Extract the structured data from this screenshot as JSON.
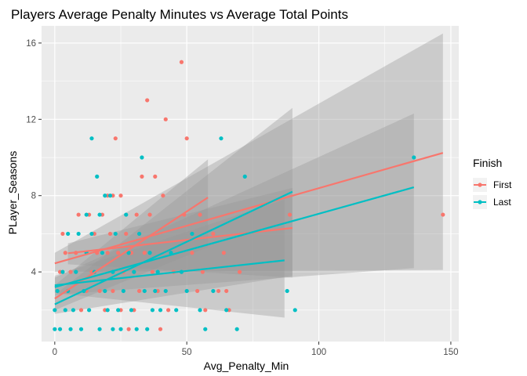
{
  "chart_data": {
    "type": "scatter",
    "title": "Players Average Penalty Minutes vs Average Total Points",
    "xlabel": "Avg_Penalty_Min",
    "ylabel": "PLayer_Seasons",
    "xlim": [
      -5,
      153
    ],
    "ylim": [
      0.35,
      16.9
    ],
    "xticks": [
      0,
      50,
      100,
      150
    ],
    "yticks": [
      4,
      8,
      12,
      16
    ],
    "grid": true,
    "legend": {
      "title": "Finish",
      "position": "right"
    },
    "series": [
      {
        "name": "First",
        "color": "#F8766D",
        "points": [
          [
            2,
            4
          ],
          [
            3,
            6
          ],
          [
            4,
            5
          ],
          [
            5,
            3
          ],
          [
            6,
            4
          ],
          [
            8,
            5
          ],
          [
            9,
            7
          ],
          [
            10,
            2
          ],
          [
            12,
            3
          ],
          [
            13,
            7
          ],
          [
            14,
            4
          ],
          [
            15,
            6
          ],
          [
            16,
            5
          ],
          [
            17,
            3
          ],
          [
            18,
            7
          ],
          [
            19,
            2
          ],
          [
            20,
            5
          ],
          [
            20,
            8
          ],
          [
            21,
            6
          ],
          [
            22,
            3
          ],
          [
            22,
            8
          ],
          [
            23,
            11
          ],
          [
            24,
            5
          ],
          [
            25,
            2
          ],
          [
            25,
            8
          ],
          [
            26,
            4
          ],
          [
            27,
            6
          ],
          [
            28,
            1
          ],
          [
            29,
            5
          ],
          [
            30,
            2
          ],
          [
            31,
            7
          ],
          [
            32,
            3
          ],
          [
            33,
            9
          ],
          [
            34,
            5
          ],
          [
            35,
            13
          ],
          [
            36,
            7
          ],
          [
            37,
            4
          ],
          [
            38,
            9
          ],
          [
            39,
            3
          ],
          [
            40,
            1
          ],
          [
            41,
            8
          ],
          [
            42,
            12
          ],
          [
            43,
            2
          ],
          [
            45,
            4
          ],
          [
            48,
            15
          ],
          [
            49,
            7
          ],
          [
            50,
            11
          ],
          [
            52,
            5
          ],
          [
            54,
            3
          ],
          [
            55,
            7
          ],
          [
            56,
            4
          ],
          [
            57,
            2
          ],
          [
            60,
            6
          ],
          [
            62,
            3
          ],
          [
            64,
            5
          ],
          [
            65,
            3
          ],
          [
            66,
            2
          ],
          [
            70,
            4
          ],
          [
            89,
            7
          ],
          [
            147,
            7
          ]
        ],
        "fit_a": {
          "x_range": [
            0,
            147
          ],
          "intercept": 4.45,
          "slope": 0.0394,
          "ci_low": [
            4.0,
            4.1
          ],
          "ci_high": [
            5.0,
            16.5
          ]
        },
        "fit_b": {
          "x_range": [
            0,
            58
          ],
          "intercept": 2.6,
          "slope": 0.0914,
          "ci_low": [
            2.0,
            5.3
          ],
          "ci_high": [
            3.3,
            9.9
          ]
        },
        "fit_c": {
          "x_range": [
            5,
            90
          ],
          "intercept": 4.9,
          "slope": 0.0156,
          "ci_low": [
            4.4,
            3.7
          ],
          "ci_high": [
            5.5,
            8.4
          ]
        }
      },
      {
        "name": "Last",
        "color": "#00BFC4",
        "points": [
          [
            0,
            1
          ],
          [
            0,
            2
          ],
          [
            1,
            3
          ],
          [
            2,
            1
          ],
          [
            3,
            4
          ],
          [
            4,
            2
          ],
          [
            5,
            3
          ],
          [
            5,
            6
          ],
          [
            6,
            1
          ],
          [
            7,
            2
          ],
          [
            8,
            4
          ],
          [
            9,
            6
          ],
          [
            10,
            1
          ],
          [
            11,
            3
          ],
          [
            12,
            5
          ],
          [
            12,
            7
          ],
          [
            13,
            2
          ],
          [
            14,
            6
          ],
          [
            14,
            11
          ],
          [
            15,
            4
          ],
          [
            16,
            9
          ],
          [
            17,
            1
          ],
          [
            17,
            7
          ],
          [
            18,
            5
          ],
          [
            19,
            3
          ],
          [
            19,
            8
          ],
          [
            20,
            2
          ],
          [
            21,
            8
          ],
          [
            22,
            1
          ],
          [
            22,
            4
          ],
          [
            23,
            6
          ],
          [
            24,
            2
          ],
          [
            25,
            1
          ],
          [
            26,
            3
          ],
          [
            27,
            7
          ],
          [
            28,
            5
          ],
          [
            29,
            2
          ],
          [
            30,
            4
          ],
          [
            31,
            1
          ],
          [
            32,
            6
          ],
          [
            33,
            10
          ],
          [
            34,
            3
          ],
          [
            35,
            1
          ],
          [
            36,
            5
          ],
          [
            37,
            2
          ],
          [
            38,
            3
          ],
          [
            39,
            4
          ],
          [
            40,
            2
          ],
          [
            42,
            3
          ],
          [
            44,
            5
          ],
          [
            46,
            2
          ],
          [
            48,
            4
          ],
          [
            50,
            3
          ],
          [
            52,
            6
          ],
          [
            55,
            2
          ],
          [
            57,
            1
          ],
          [
            60,
            3
          ],
          [
            63,
            11
          ],
          [
            65,
            2
          ],
          [
            69,
            1
          ],
          [
            72,
            9
          ],
          [
            88,
            3
          ],
          [
            91,
            2
          ],
          [
            136,
            10
          ]
        ],
        "fit_a": {
          "x_range": [
            0,
            136
          ],
          "intercept": 3.2,
          "slope": 0.0385,
          "ci_low": [
            2.8,
            4.2
          ],
          "ci_high": [
            3.7,
            12.3
          ]
        },
        "fit_b": {
          "x_range": [
            0,
            90
          ],
          "intercept": 2.3,
          "slope": 0.0656,
          "ci_low": [
            1.8,
            3.8
          ],
          "ci_high": [
            2.8,
            12.6
          ]
        },
        "fit_c": {
          "x_range": [
            0,
            87
          ],
          "intercept": 3.3,
          "slope": 0.015,
          "ci_low": [
            2.9,
            1.6
          ],
          "ci_high": [
            3.8,
            7.8
          ]
        }
      }
    ]
  }
}
